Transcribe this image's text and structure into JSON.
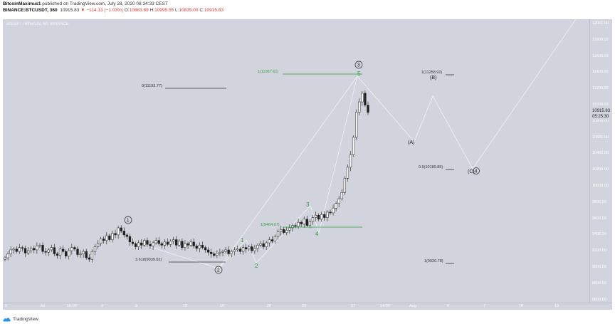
{
  "header": {
    "author": "BitcoinMaximus1",
    "published": " published on TradingView.com, July 28, 2020 08:34:33 CEST",
    "symbol": "BINANCE:BTCUSDT, 360",
    "last": "10915.83",
    "change": "▼ −114.13 (−1.03%)",
    "o_label": "O:",
    "o": "10883.89",
    "h_label": "H:",
    "h": "10995.55",
    "l_label": "L:",
    "l": "10835.00",
    "c_label": "C:",
    "c": "10915.83"
  },
  "chart": {
    "symbol_line": "Bitcoin / TetherUS, 6h, BINANCE",
    "price_ticks": [
      "12000.00",
      "11800.00",
      "11600.00",
      "11400.00",
      "11200.00",
      "11000.00",
      "10800.00",
      "10600.00",
      "10400.00",
      "10200.00",
      "10000.00",
      "9800.00",
      "9600.00",
      "9400.00",
      "9200.00",
      "9000.00",
      "8800.00",
      "8600.00"
    ],
    "current_price": "10915.83",
    "countdown": "05:25:30",
    "time_ticks": [
      "9",
      "Jul",
      "16:00",
      "6",
      "9",
      "13",
      "16",
      "20",
      "23",
      "27",
      "14:00",
      "Aug",
      "6",
      "7",
      "10",
      "13"
    ],
    "labels": {
      "fib_0": "0(11193.77)",
      "fib_1": "1(11367.61)",
      "fib_3618": "3.618(9039.62)",
      "fib_1b": "1(9464.07)",
      "fib_b": "1(11258.92)",
      "fib_05": "0.5(10189.85)",
      "fib_low": "1(9020.78)",
      "wave_1": "1",
      "wave_2": "2",
      "wave_3": "3",
      "wave_4": "4",
      "wave_5": "5",
      "wave_big_1": "1",
      "wave_big_2": "2",
      "wave_big_3": "3",
      "wave_a": "(A)",
      "wave_b": "(B)",
      "wave_c": "(C)",
      "wave_c4": "4"
    }
  },
  "footer": {
    "brand": "TradingView"
  },
  "colors": {
    "bg": "#d1d4dc",
    "candle": "#ffffff",
    "candle_dark": "#1e1e1e",
    "green": "#2e9e3e",
    "fib_line": "#333333",
    "path": "#ffffff"
  },
  "chart_data": {
    "type": "candlestick",
    "symbol": "BINANCE:BTCUSDT",
    "ohlc_last": {
      "open": 10883.89,
      "high": 10995.55,
      "low": 10835.0,
      "close": 10915.83
    },
    "ylim": [
      8500,
      12100
    ],
    "levels": [
      {
        "label": "0(11193.77)",
        "price": 11193.77
      },
      {
        "label": "1(11367.61)",
        "price": 11367.61
      },
      {
        "label": "3.618(9039.62)",
        "price": 9039.62
      },
      {
        "label": "1(9464.07)",
        "price": 9464.07
      },
      {
        "label": "1(11258.92)",
        "price": 11258.92
      },
      {
        "label": "0.5(10189.85)",
        "price": 10189.85
      },
      {
        "label": "1(9020.78)",
        "price": 9020.78
      }
    ],
    "closes": [
      9070,
      9120,
      9170,
      9180,
      9150,
      9200,
      9190,
      9130,
      9160,
      9190,
      9170,
      9220,
      9230,
      9150,
      9140,
      9170,
      9200,
      9120,
      9100,
      9180,
      9150,
      9090,
      9160,
      9200,
      9180,
      9110,
      9120,
      9150,
      9070,
      9050,
      9150,
      9210,
      9250,
      9310,
      9290,
      9350,
      9300,
      9380,
      9360,
      9450,
      9410,
      9360,
      9340,
      9270,
      9250,
      9210,
      9260,
      9230,
      9290,
      9240,
      9220,
      9260,
      9290,
      9250,
      9230,
      9270,
      9240,
      9280,
      9300,
      9230,
      9280,
      9200,
      9250,
      9230,
      9270,
      9220,
      9190,
      9230,
      9200,
      9170,
      9140,
      9120,
      9100,
      9130,
      9140,
      9150,
      9170,
      9120,
      9150,
      9170,
      9180,
      9150,
      9200,
      9180,
      9210,
      9160,
      9190,
      9230,
      9250,
      9210,
      9260,
      9300,
      9280,
      9340,
      9400,
      9430,
      9390,
      9420,
      9450,
      9480,
      9470,
      9520,
      9500,
      9560,
      9480,
      9530,
      9580,
      9610,
      9560,
      9620,
      9580,
      9650,
      9640,
      9700,
      9760,
      9820,
      9900,
      10080,
      10220,
      10380,
      10600,
      10920,
      11050,
      11160,
      11010,
      10915.83
    ]
  }
}
